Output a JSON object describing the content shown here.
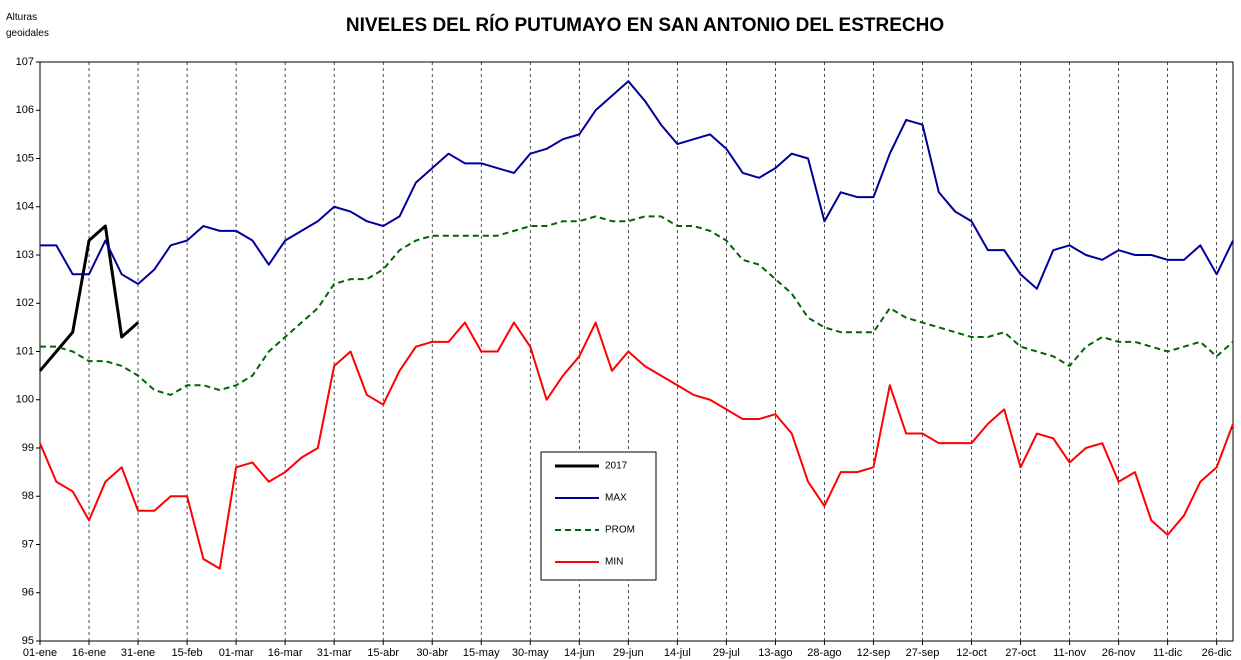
{
  "chart_data": {
    "type": "line",
    "title": "NIVELES DEL RÍO PUTUMAYO EN SAN ANTONIO DEL ESTRECHO",
    "ylabel": "Alturas geoidales",
    "x": [
      0,
      5,
      10,
      15,
      20,
      25,
      30,
      35,
      40,
      45,
      50,
      55,
      60,
      65,
      70,
      75,
      80,
      85,
      90,
      95,
      100,
      105,
      110,
      115,
      120,
      125,
      130,
      135,
      140,
      145,
      150,
      155,
      160,
      165,
      170,
      175,
      180,
      185,
      190,
      195,
      200,
      205,
      210,
      215,
      220,
      225,
      230,
      235,
      240,
      245,
      250,
      255,
      260,
      265,
      270,
      275,
      280,
      285,
      290,
      295,
      300,
      305,
      310,
      315,
      320,
      325,
      330,
      335,
      340,
      345,
      350,
      355,
      360,
      365
    ],
    "xlim": [
      0,
      365
    ],
    "xticks": [
      {
        "value": 0,
        "label": "01-ene"
      },
      {
        "value": 15,
        "label": "16-ene"
      },
      {
        "value": 30,
        "label": "31-ene"
      },
      {
        "value": 45,
        "label": "15-feb"
      },
      {
        "value": 60,
        "label": "01-mar"
      },
      {
        "value": 75,
        "label": "16-mar"
      },
      {
        "value": 90,
        "label": "31-mar"
      },
      {
        "value": 105,
        "label": "15-abr"
      },
      {
        "value": 120,
        "label": "30-abr"
      },
      {
        "value": 135,
        "label": "15-may"
      },
      {
        "value": 150,
        "label": "30-may"
      },
      {
        "value": 165,
        "label": "14-jun"
      },
      {
        "value": 180,
        "label": "29-jun"
      },
      {
        "value": 195,
        "label": "14-jul"
      },
      {
        "value": 210,
        "label": "29-jul"
      },
      {
        "value": 225,
        "label": "13-ago"
      },
      {
        "value": 240,
        "label": "28-ago"
      },
      {
        "value": 255,
        "label": "12-sep"
      },
      {
        "value": 270,
        "label": "27-sep"
      },
      {
        "value": 285,
        "label": "12-oct"
      },
      {
        "value": 300,
        "label": "27-oct"
      },
      {
        "value": 315,
        "label": "11-nov"
      },
      {
        "value": 330,
        "label": "26-nov"
      },
      {
        "value": 345,
        "label": "11-dic"
      },
      {
        "value": 360,
        "label": "26-dic"
      }
    ],
    "ylim": [
      95,
      107
    ],
    "yticks": [
      95,
      96,
      97,
      98,
      99,
      100,
      101,
      102,
      103,
      104,
      105,
      106,
      107
    ],
    "grid": true,
    "series": [
      {
        "name": "2017",
        "color": "#000000",
        "dash": false,
        "width": 3,
        "values": [
          100.6,
          101.0,
          101.4,
          103.3,
          103.6,
          101.3,
          101.6,
          null,
          null,
          null,
          null,
          null,
          null,
          null,
          null,
          null,
          null,
          null,
          null,
          null,
          null,
          null,
          null,
          null,
          null,
          null,
          null,
          null,
          null,
          null,
          null,
          null,
          null,
          null,
          null,
          null,
          null,
          null,
          null,
          null,
          null,
          null,
          null,
          null,
          null,
          null,
          null,
          null,
          null,
          null,
          null,
          null,
          null,
          null,
          null,
          null,
          null,
          null,
          null,
          null,
          null,
          null,
          null,
          null,
          null,
          null,
          null,
          null,
          null,
          null,
          null,
          null,
          null,
          null
        ]
      },
      {
        "name": "MAX",
        "color": "#000099",
        "dash": false,
        "width": 2,
        "values": [
          103.2,
          103.2,
          102.6,
          102.6,
          103.3,
          102.6,
          102.4,
          102.7,
          103.2,
          103.3,
          103.6,
          103.5,
          103.5,
          103.3,
          102.8,
          103.3,
          103.5,
          103.7,
          104.0,
          103.9,
          103.7,
          103.6,
          103.8,
          104.5,
          104.8,
          105.1,
          104.9,
          104.9,
          104.8,
          104.7,
          105.1,
          105.2,
          105.4,
          105.5,
          106.0,
          106.3,
          106.6,
          106.2,
          105.7,
          105.3,
          105.4,
          105.5,
          105.2,
          104.7,
          104.6,
          104.8,
          105.1,
          105.0,
          103.7,
          104.3,
          104.2,
          104.2,
          105.1,
          105.8,
          105.7,
          104.3,
          103.9,
          103.7,
          103.1,
          103.1,
          102.6,
          102.3,
          103.1,
          103.2,
          103.0,
          102.9,
          103.1,
          103.0,
          103.0,
          102.9,
          102.9,
          103.2,
          102.6,
          103.3
        ]
      },
      {
        "name": "PROM",
        "color": "#006600",
        "dash": true,
        "width": 2,
        "values": [
          101.1,
          101.1,
          101.0,
          100.8,
          100.8,
          100.7,
          100.5,
          100.2,
          100.1,
          100.3,
          100.3,
          100.2,
          100.3,
          100.5,
          101.0,
          101.3,
          101.6,
          101.9,
          102.4,
          102.5,
          102.5,
          102.7,
          103.1,
          103.3,
          103.4,
          103.4,
          103.4,
          103.4,
          103.4,
          103.5,
          103.6,
          103.6,
          103.7,
          103.7,
          103.8,
          103.7,
          103.7,
          103.8,
          103.8,
          103.6,
          103.6,
          103.5,
          103.3,
          102.9,
          102.8,
          102.5,
          102.2,
          101.7,
          101.5,
          101.4,
          101.4,
          101.4,
          101.9,
          101.7,
          101.6,
          101.5,
          101.4,
          101.3,
          101.3,
          101.4,
          101.1,
          101.0,
          100.9,
          100.7,
          101.1,
          101.3,
          101.2,
          101.2,
          101.1,
          101.0,
          101.1,
          101.2,
          100.9,
          101.2
        ]
      },
      {
        "name": "MIN",
        "color": "#ff0000",
        "dash": false,
        "width": 2,
        "values": [
          99.1,
          98.3,
          98.1,
          97.5,
          98.3,
          98.6,
          97.7,
          97.7,
          98.0,
          98.0,
          96.7,
          96.5,
          98.6,
          98.7,
          98.3,
          98.5,
          98.8,
          99.0,
          100.7,
          101.0,
          100.1,
          99.9,
          100.6,
          101.1,
          101.2,
          101.2,
          101.6,
          101.0,
          101.0,
          101.6,
          101.1,
          100.0,
          100.5,
          100.9,
          101.6,
          100.6,
          101.0,
          100.7,
          100.5,
          100.3,
          100.1,
          100.0,
          99.8,
          99.6,
          99.6,
          99.7,
          99.3,
          98.3,
          97.8,
          98.5,
          98.5,
          98.6,
          100.3,
          99.3,
          99.3,
          99.1,
          99.1,
          99.1,
          99.5,
          99.8,
          98.6,
          99.3,
          99.2,
          98.7,
          99.0,
          99.1,
          98.3,
          98.5,
          97.5,
          97.2,
          97.6,
          98.3,
          98.6,
          99.5
        ]
      }
    ]
  }
}
